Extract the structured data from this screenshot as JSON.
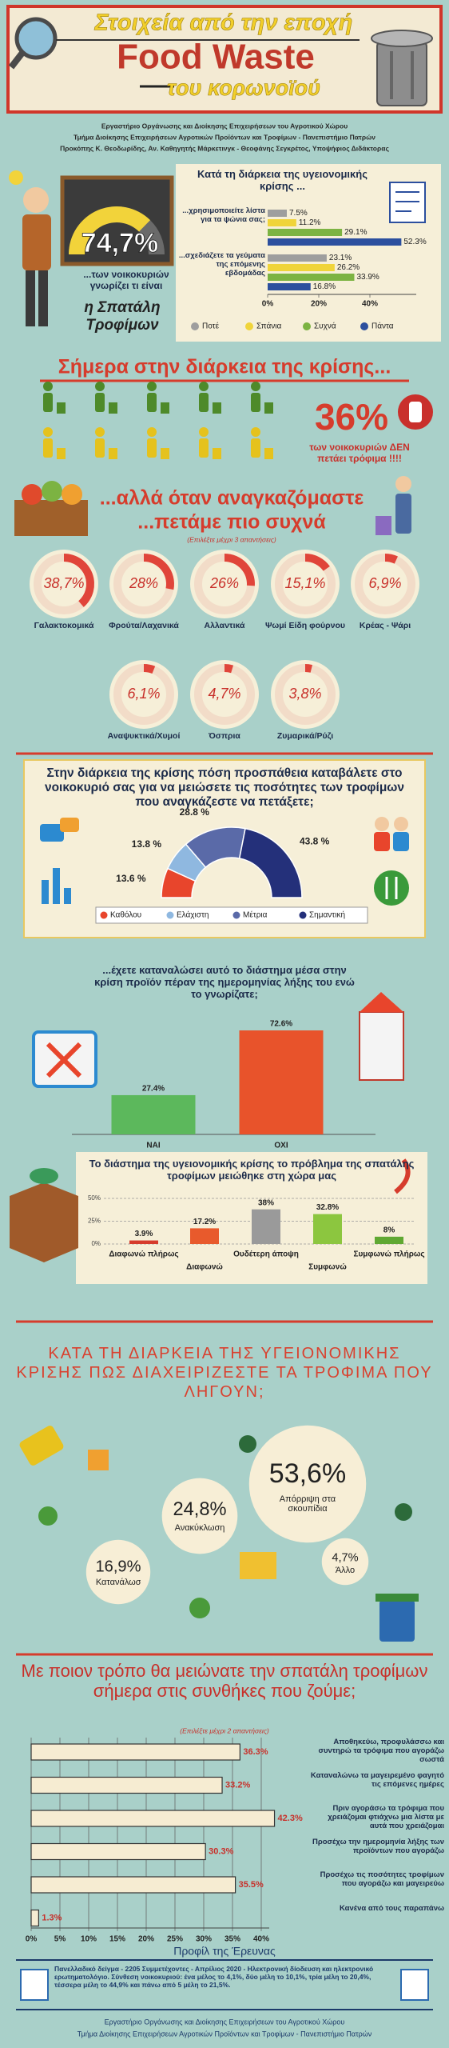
{
  "header": {
    "title_top": "Στοιχεία από την εποχή",
    "title_main": "Food Waste",
    "title_bottom": "του κορωνοϊού"
  },
  "credits": [
    "Εργαστήριο Οργάνωσης και Διοίκησης Επιχειρήσεων του Αγροτικού Χώρου",
    "Τμήμα Διοίκησης Επιχειρήσεων Αγροτικών Προϊόντων και Τροφίμων - Πανεπιστήμιο Πατρών",
    "Προκόπης Κ. Θεοδωρίδης, Αν. Καθηγητής Μάρκετινγκ - Θεοφάνης Σεγκρέτος, Υποψήφιος Διδάκτορας"
  ],
  "chart_data": [
    {
      "type": "gauge",
      "value": 74.7,
      "value_label": "74,7%",
      "caption": "...των νοικοκυριών γνωρίζει τι είναι",
      "highlight": "η Σπατάλη Τροφίμων",
      "color": "#f2d33a"
    },
    {
      "type": "hbar",
      "title": "Κατά τη διάρκεια της υγειονομικής κρίσης ...",
      "categories": [
        "...χρησιμοποιείτε λίστα για τα ψώνια σας;",
        "...σχεδιάζετε τα γεύματα της επόμενης εβδομάδας"
      ],
      "series": [
        {
          "name": "Ποτέ",
          "color": "#9e9e9e",
          "values": [
            7.5,
            23.1
          ],
          "value_labels": [
            "7.5%",
            "23.1%"
          ]
        },
        {
          "name": "Σπάνια",
          "color": "#f0d43a",
          "values": [
            11.2,
            26.2
          ],
          "value_labels": [
            "11.2%",
            "26.2%"
          ]
        },
        {
          "name": "Συχνά",
          "color": "#7cb342",
          "values": [
            29.1,
            33.9
          ],
          "value_labels": [
            "29.1%",
            "33.9%"
          ]
        },
        {
          "name": "Πάντα",
          "color": "#2c4f9e",
          "values": [
            52.3,
            16.8
          ],
          "value_labels": [
            "52.3%",
            "16.8%"
          ]
        }
      ],
      "xlim": [
        0,
        55
      ],
      "xticks": [
        {
          "value": 0,
          "label": "0%"
        },
        {
          "value": 20,
          "label": "20%"
        },
        {
          "value": 40,
          "label": "40%"
        }
      ],
      "legend": "bottom"
    },
    {
      "type": "stat",
      "title": "Σήμερα στην διάρκεια της κρίσης...",
      "value": 36,
      "value_label": "36%",
      "caption": "των νοικοκυριών ΔΕΝ πετάει τρόφιμα !!!!",
      "color": "#d63c2c"
    },
    {
      "type": "donut",
      "title": [
        "...αλλά όταν αναγκαζόμαστε",
        "...πετάμε πιο συχνά"
      ],
      "note": "(Επιλέξτε μέχρι 3 απαντήσεις)",
      "categories": [
        "Γαλακτοκομικά",
        "Φρούτα/Λαχανικά",
        "Αλλαντικά",
        "Ψωμί Είδη φούρνου",
        "Κρέας - Ψάρι",
        "Αναψυκτικά/Χυμοί",
        "Όσπρια",
        "Ζυμαρικά/Ρύζι"
      ],
      "values": [
        38.7,
        28,
        26,
        15.1,
        6.9,
        6.1,
        4.7,
        3.8
      ],
      "value_labels": [
        "38,7%",
        "28%",
        "26%",
        "15,1%",
        "6,9%",
        "6,1%",
        "4,7%",
        "3,8%"
      ],
      "color": "#e0453a"
    },
    {
      "type": "semidonut",
      "title": "Στην διάρκεια της κρίσης πόση προσπάθεια καταβάλετε στο νοικοκυριό σας για να μειώσετε τις ποσότητες των τροφίμων που αναγκάζεστε να πετάξετε;",
      "categories": [
        "Καθόλου",
        "Ελάχιστη",
        "Μέτρια",
        "Σημαντική"
      ],
      "values": [
        13.6,
        13.8,
        28.8,
        43.8
      ],
      "value_labels": [
        "13.6 %",
        "13.8 %",
        "28.8 %",
        "43.8 %"
      ],
      "colors": [
        "#e8452c",
        "#8fb8e0",
        "#5a6aa8",
        "#24307a"
      ],
      "legend": "bottom"
    },
    {
      "type": "bar",
      "title": "...έχετε καταναλώσει αυτό το διάστημα μέσα στην κρίση προϊόν πέραν της ημερομηνίας λήξης του ενώ το γνωρίζατε;",
      "categories": [
        "ΝΑΙ",
        "ΟΧΙ"
      ],
      "values": [
        27.4,
        72.6
      ],
      "value_labels": [
        "27.4%",
        "72.6%"
      ],
      "colors": [
        "#5cb85c",
        "#e8532b"
      ]
    },
    {
      "type": "bar",
      "title": "Το διάστημα της υγειονομικής κρίσης το πρόβλημα της σπατάλης τροφίμων μειώθηκε στη χώρα μας",
      "categories": [
        "Διαφωνώ πλήρως",
        "Διαφωνώ",
        "Ουδέτερη άποψη",
        "Συμφωνώ",
        "Συμφωνώ πλήρως"
      ],
      "values": [
        3.9,
        17.2,
        38,
        32.8,
        8
      ],
      "value_labels": [
        "3.9%",
        "17.2%",
        "38%",
        "32.8%",
        "8%"
      ],
      "colors": [
        "#d63c2c",
        "#e85a2c",
        "#9a9a9a",
        "#8cc63f",
        "#5fa832"
      ],
      "ylim": [
        0,
        50
      ],
      "yticks": [
        {
          "value": 0,
          "label": "0%"
        },
        {
          "value": 25,
          "label": "25%"
        },
        {
          "value": 50,
          "label": "50%"
        }
      ],
      "grid": true
    },
    {
      "type": "bubble",
      "title": "ΚΑΤΑ ΤΗ ΔΙΑΡΚΕΙΑ ΤΗΣ ΥΓΕΙΟΝΟΜΙΚΗΣ ΚΡΙΣΗΣ ΠΩΣ ΔΙΑΧΕΙΡΙΖΕΣΤΕ ΤΑ ΤΡΟΦΙΜΑ ΠΟΥ ΛΗΓΟΥΝ;",
      "categories": [
        "Απόρριψη στα σκουπίδια",
        "Ανακύκλωση",
        "Κατανάλωση",
        "Άλλο"
      ],
      "values": [
        53.6,
        24.8,
        16.9,
        4.7
      ],
      "value_labels": [
        "53,6%",
        "24,8%",
        "16,9%",
        "4,7%"
      ],
      "color": "#f7eed6"
    },
    {
      "type": "hbar",
      "title": "Με ποιον τρόπο θα μειώνατε την σπατάλη τροφίμων σήμερα στις συνθήκες που ζούμε;",
      "note": "(Επιλέξτε μέχρι 2 απαντήσεις)",
      "categories": [
        "Αποθηκεύω, προφυλάσσω και συντηρώ τα τρόφιμα που αγοράζω σωστά",
        "Καταναλώνω τα μαγειρεμένο φαγητό τις επόμενες ημέρες",
        "Πριν αγοράσω τα τρόφιμα που χρειάζομαι φτιάχνω μια λίστα με αυτά που χρειάζομαι",
        "Προσέχω την ημερομηνία λήξης των προϊόντων που αγοράζω",
        "Προσέχω τις ποσότητες τροφίμων που αγοράζω και μαγειρεύω",
        "Κανένα από τους παραπάνω"
      ],
      "values": [
        36.3,
        33.2,
        42.3,
        30.3,
        35.5,
        1.3
      ],
      "value_labels": [
        "36.3%",
        "33.2%",
        "42.3%",
        "30.3%",
        "35.5%",
        "1.3%"
      ],
      "color": "#f6ecd2",
      "xlim": [
        0,
        40
      ],
      "xticks": [
        {
          "value": 0,
          "label": "0%"
        },
        {
          "value": 5,
          "label": "5%"
        },
        {
          "value": 10,
          "label": "10%"
        },
        {
          "value": 15,
          "label": "15%"
        },
        {
          "value": 20,
          "label": "20%"
        },
        {
          "value": 25,
          "label": "25%"
        },
        {
          "value": 30,
          "label": "30%"
        },
        {
          "value": 35,
          "label": "35%"
        },
        {
          "value": 40,
          "label": "40%"
        }
      ],
      "grid": true
    }
  ],
  "footer": {
    "title": "Προφίλ της Έρευνας",
    "text": "Πανελλαδικό δείγμα - 2205 Συμμετέχοντες - Απρίλιος 2020 - Ηλεκτρονική δίοδευση και ηλεκτρονικό ερωτηματολόγιο. Σύνθεση νοικοκυριού: ένα μέλος το 4,1%, δύο μέλη το 10,1%, τρία μέλη το 20,4%, τέσσερα μέλη το 44,9% και πάνω από 5 μέλη το 21,5%.",
    "lines": [
      "Εργαστήριο Οργάνωσης και Διοίκησης Επιχειρήσεων του Αγροτικού Χώρου",
      "Τμήμα Διοίκησης Επιχειρήσεων Αγροτικών Προϊόντων και Τροφίμων - Πανεπιστήμιο Πατρών"
    ]
  }
}
